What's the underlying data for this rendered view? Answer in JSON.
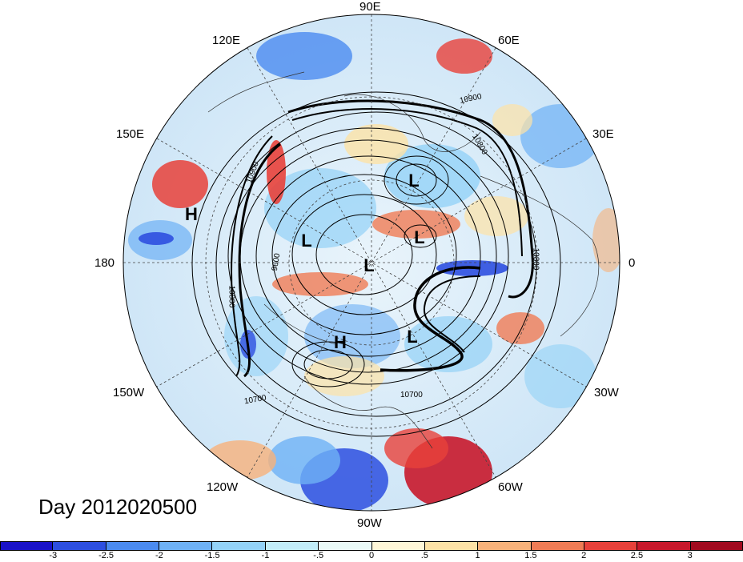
{
  "date_label": "Day 2012020500",
  "longitude_labels": {
    "n90e": "90E",
    "n60e": "60E",
    "n30e": "30E",
    "n0": "0",
    "n30w": "30W",
    "n60w": "60W",
    "n90w": "90W",
    "n120w": "120W",
    "n150w": "150W",
    "n180": "180",
    "n150e": "150E",
    "n120e": "120E"
  },
  "pressure_systems": [
    {
      "type": "L"
    },
    {
      "type": "L"
    },
    {
      "type": "L"
    },
    {
      "type": "L"
    },
    {
      "type": "L"
    },
    {
      "type": "H"
    },
    {
      "type": "H"
    }
  ],
  "contour_labels": [
    "10900",
    "10800",
    "10900",
    "9600",
    "10800",
    "10700",
    "10700",
    "10800"
  ],
  "colorbar": {
    "tick_labels": [
      "-3",
      "-2.5",
      "-2",
      "-1.5",
      "-1",
      "-.5",
      "0",
      ".5",
      "1",
      "1.5",
      "2",
      "2.5",
      "3"
    ],
    "colors": [
      "#1a12c8",
      "#2d4fe0",
      "#4b8bf0",
      "#6eb1f5",
      "#93d2f7",
      "#c2edf9",
      "#eafaf8",
      "#fff7d8",
      "#fde2a6",
      "#f8b27a",
      "#f07c55",
      "#e8413a",
      "#c8182b",
      "#a10a1f"
    ]
  }
}
